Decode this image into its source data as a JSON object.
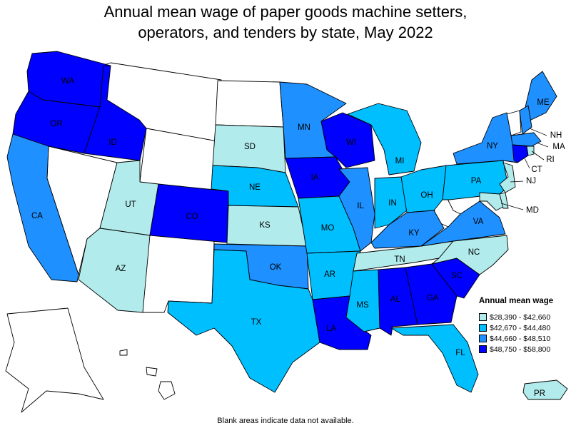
{
  "title_line1": "Annual mean wage of paper goods machine setters,",
  "title_line2": "operators, and tenders by state, May 2022",
  "legend": {
    "title": "Annual mean wage",
    "items": [
      {
        "label": "$28,390 - $42,660",
        "color": "#b2ebeb"
      },
      {
        "label": "$42,670 - $44,480",
        "color": "#00bfff"
      },
      {
        "label": "$44,660 - $48,510",
        "color": "#1e90ff"
      },
      {
        "label": "$48,750 - $58,800",
        "color": "#0000ff"
      }
    ]
  },
  "colors": {
    "no_data": "#ffffff"
  },
  "footnote": "Blank areas indicate data not available.",
  "states": {
    "WA": "$48,750 - $58,800",
    "OR": "$48,750 - $58,800",
    "ID": "$48,750 - $58,800",
    "CA": "$44,660 - $48,510",
    "UT": "$28,390 - $42,660",
    "AZ": "$28,390 - $42,660",
    "CO": "$48,750 - $58,800",
    "SD": "$28,390 - $42,660",
    "NE": "$42,670 - $44,480",
    "KS": "$28,390 - $42,660",
    "OK": "$44,660 - $48,510",
    "TX": "$42,670 - $44,480",
    "MN": "$44,660 - $48,510",
    "IA": "$48,750 - $58,800",
    "MO": "$42,670 - $44,480",
    "AR": "$42,670 - $44,480",
    "LA": "$48,750 - $58,800",
    "WI": "$48,750 - $58,800",
    "IL": "$44,660 - $48,510",
    "MI": "$42,670 - $44,480",
    "IN": "$42,670 - $44,480",
    "OH": "$42,670 - $44,480",
    "KY": "$44,660 - $48,510",
    "TN": "$28,390 - $42,660",
    "MS": "$42,670 - $44,480",
    "AL": "$48,750 - $58,800",
    "GA": "$48,750 - $58,800",
    "FL": "$42,670 - $44,480",
    "SC": "$48,750 - $58,800",
    "NC": "$28,390 - $42,660",
    "VA": "$44,660 - $48,510",
    "PA": "$42,670 - $44,480",
    "NY": "$44,660 - $48,510",
    "ME": "$44,660 - $48,510",
    "NH": "$44,660 - $48,510",
    "MA": "$44,660 - $48,510",
    "CT": "$48,750 - $58,800",
    "RI": "$28,390 - $42,660",
    "NJ": "$28,390 - $42,660",
    "MD": "$28,390 - $42,660",
    "DE": "$28,390 - $42,660",
    "PR": "$28,390 - $42,660"
  }
}
